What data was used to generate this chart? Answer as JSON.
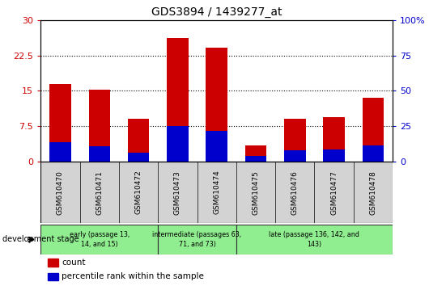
{
  "title": "GDS3894 / 1439277_at",
  "categories": [
    "GSM610470",
    "GSM610471",
    "GSM610472",
    "GSM610473",
    "GSM610474",
    "GSM610475",
    "GSM610476",
    "GSM610477",
    "GSM610478"
  ],
  "count_values": [
    16.5,
    15.2,
    9.0,
    26.2,
    24.2,
    3.5,
    9.0,
    9.5,
    13.5
  ],
  "percentile_values": [
    13.5,
    11.0,
    6.5,
    25.0,
    21.5,
    4.0,
    8.0,
    8.5,
    11.5
  ],
  "left_yticks": [
    0,
    7.5,
    15,
    22.5,
    30
  ],
  "right_yticks": [
    0,
    25,
    50,
    75,
    100
  ],
  "bar_color": "#cc0000",
  "percentile_color": "#0000cc",
  "bar_width": 0.55,
  "group_data": [
    {
      "label": "early (passage 13,\n14, and 15)",
      "start": 0,
      "end": 2,
      "color": "#90ee90"
    },
    {
      "label": "intermediate (passages 63,\n71, and 73)",
      "start": 3,
      "end": 4,
      "color": "#90ee90"
    },
    {
      "label": "late (passage 136, 142, and\n143)",
      "start": 5,
      "end": 8,
      "color": "#90ee90"
    }
  ],
  "ylim_left": [
    0,
    30
  ],
  "ylim_right": [
    0,
    100
  ],
  "left_tick_color": "#cc0000",
  "right_tick_color": "#0000cc"
}
